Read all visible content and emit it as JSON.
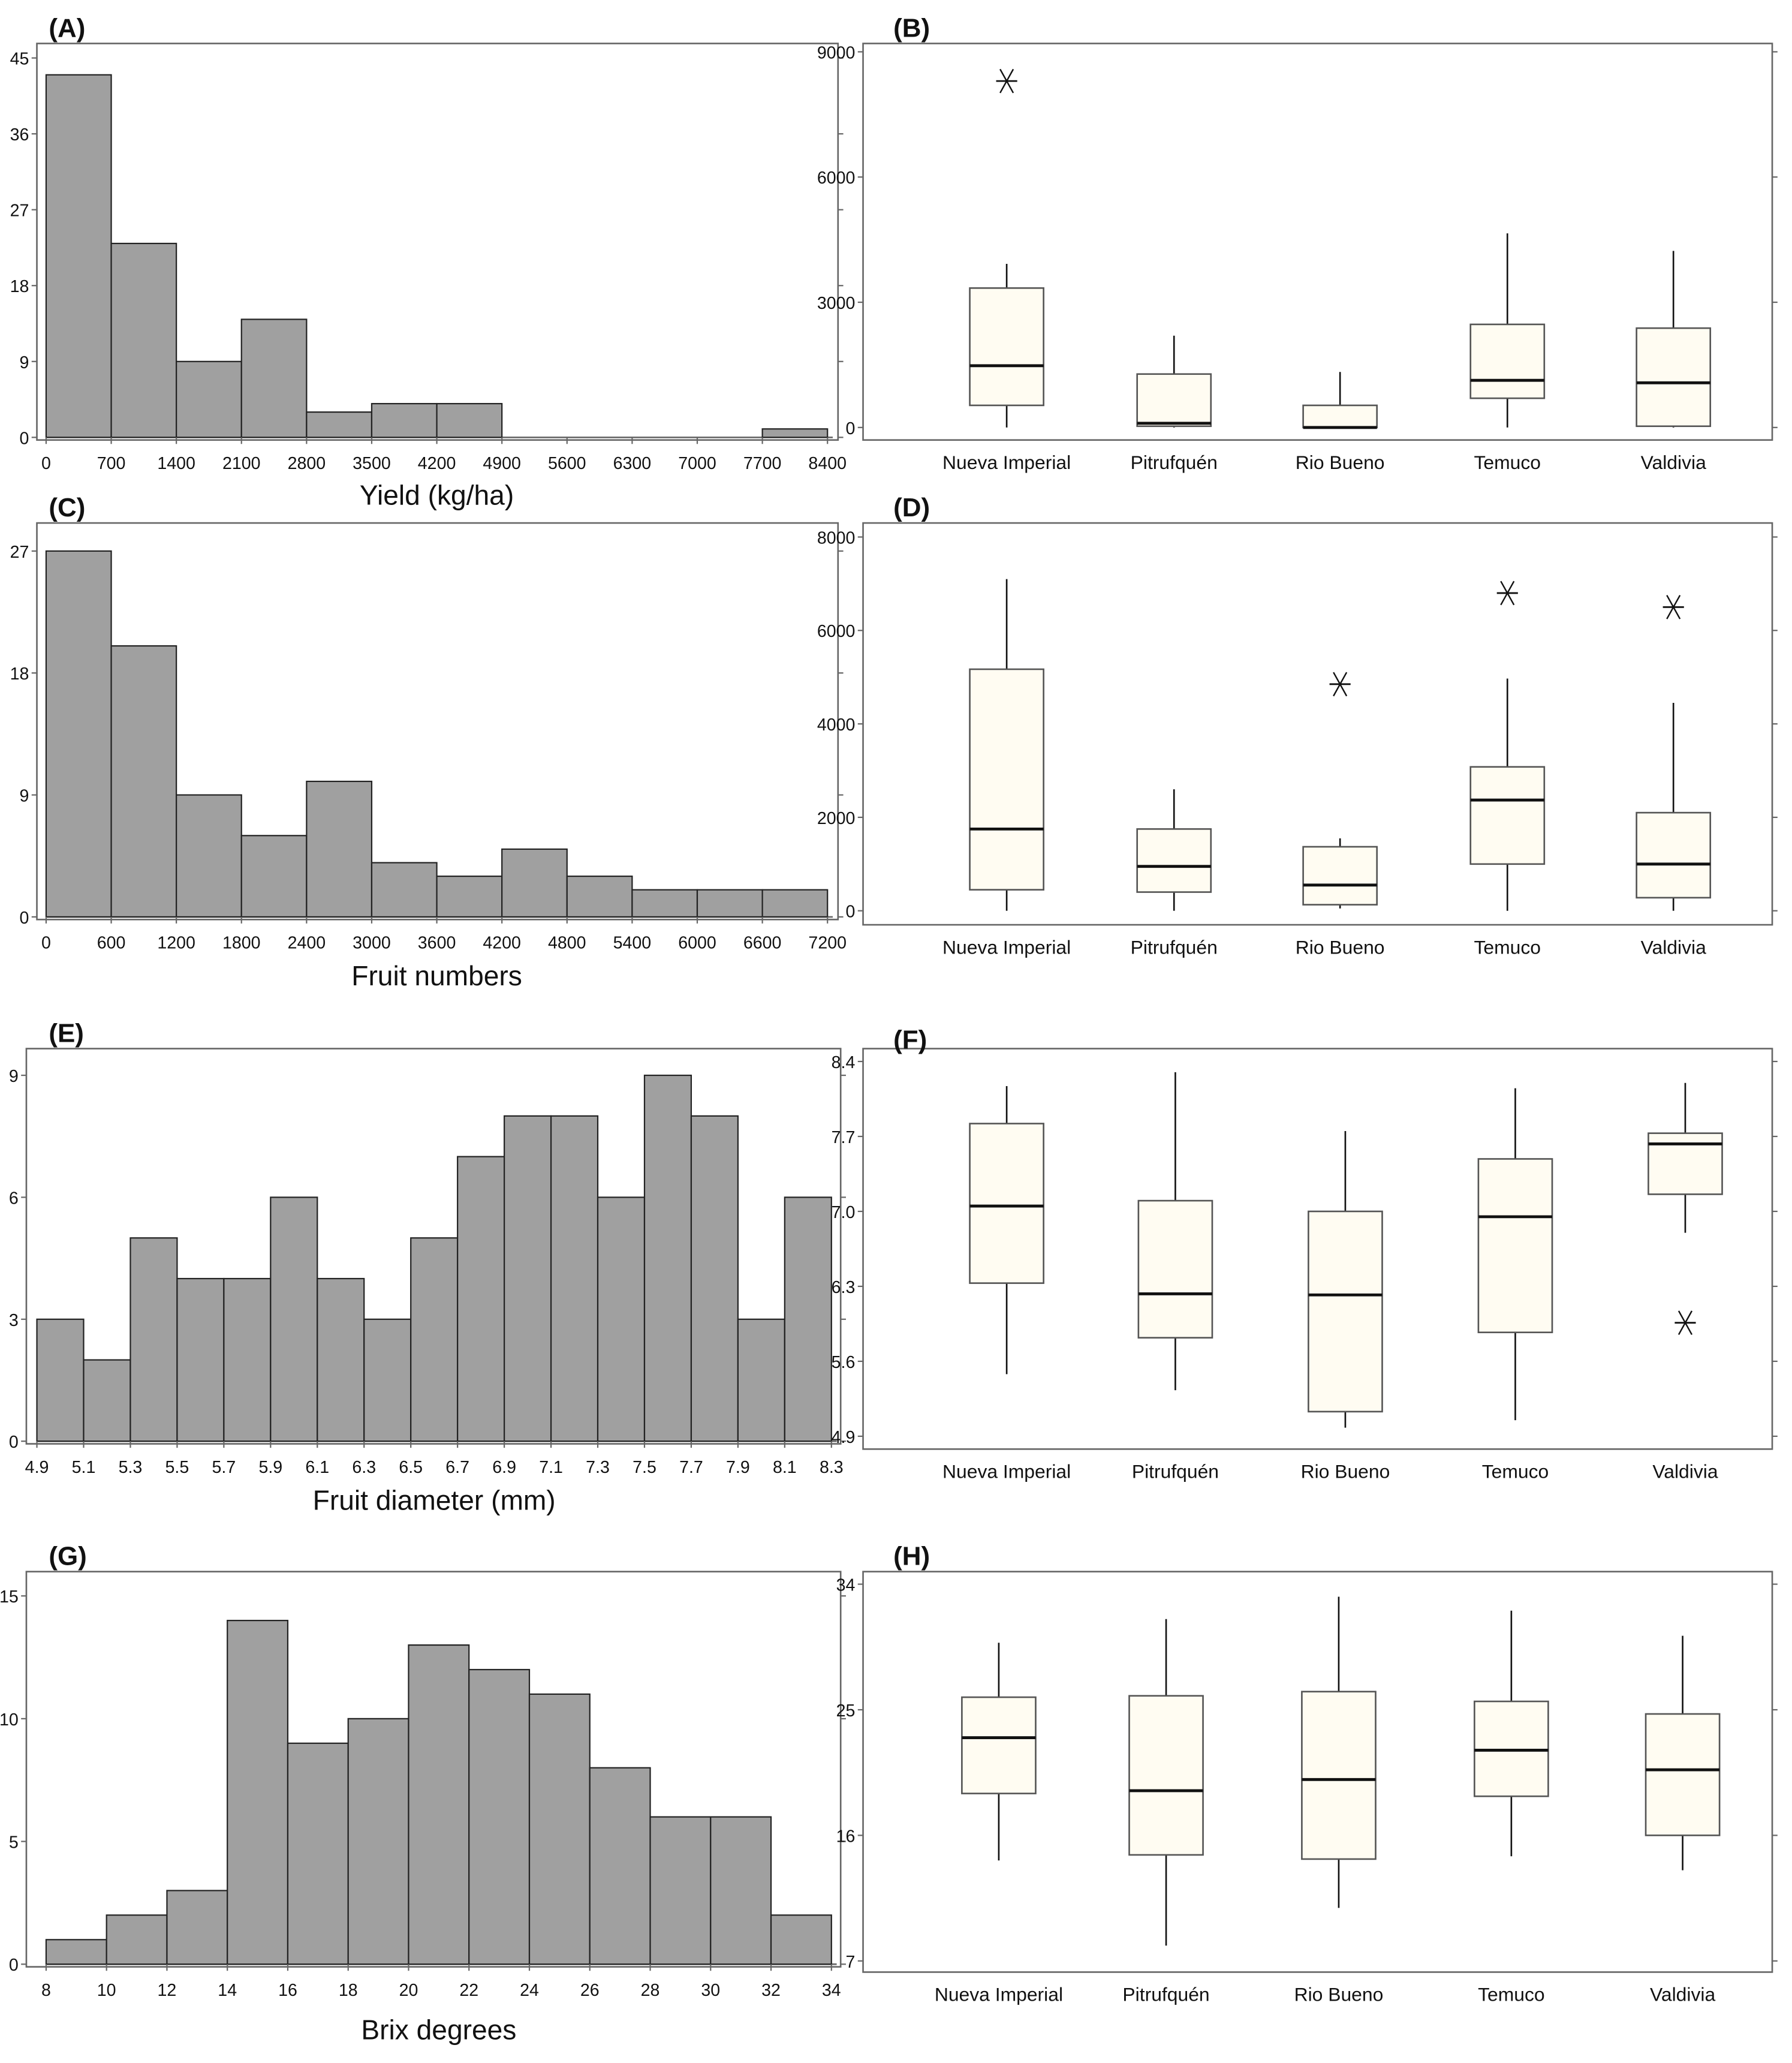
{
  "colors": {
    "bar": "#a0a0a0",
    "box": "#fffcf2",
    "frame": "#666666",
    "ink": "#111111"
  },
  "chart_data": [
    {
      "id": "A",
      "panel_label": "(A)",
      "type": "bar",
      "title": "",
      "xlabel": "Yield (kg/ha)",
      "ylabel": "",
      "bin_edges": [
        0,
        700,
        1400,
        2100,
        2800,
        3500,
        4200,
        4900,
        5600,
        6300,
        7000,
        7700,
        8400
      ],
      "x_ticks": [
        "0",
        "700",
        "1400",
        "2100",
        "2800",
        "3500",
        "4200",
        "4900",
        "5600",
        "6300",
        "7000",
        "7700",
        "8400"
      ],
      "values": [
        43,
        23,
        9,
        14,
        3,
        4,
        4,
        0,
        0,
        0,
        0,
        1
      ],
      "y_ticks": [
        "0",
        "9",
        "18",
        "27",
        "36",
        "45"
      ],
      "ylim": [
        0,
        45
      ],
      "xlim": [
        0,
        8400
      ]
    },
    {
      "id": "B",
      "panel_label": "(B)",
      "type": "box",
      "categories": [
        "Nueva Imperial",
        "Pitrufquén",
        "Rio Bueno",
        "Temuco",
        "Valdivia"
      ],
      "y_ticks": [
        "0",
        "3000",
        "6000",
        "9000"
      ],
      "ylim": [
        -300,
        9200
      ],
      "boxes": [
        {
          "low": 0,
          "q1": 530,
          "median": 1480,
          "q3": 3340,
          "high": 3920,
          "outliers": [
            8300
          ]
        },
        {
          "low": 0,
          "q1": 30,
          "median": 100,
          "q3": 1280,
          "high": 2200,
          "outliers": []
        },
        {
          "low": 0,
          "q1": 0,
          "median": 0,
          "q3": 530,
          "high": 1330,
          "outliers": []
        },
        {
          "low": 0,
          "q1": 700,
          "median": 1130,
          "q3": 2470,
          "high": 4650,
          "outliers": []
        },
        {
          "low": 0,
          "q1": 30,
          "median": 1070,
          "q3": 2380,
          "high": 4230,
          "outliers": []
        }
      ]
    },
    {
      "id": "C",
      "panel_label": "(C)",
      "type": "bar",
      "title": "",
      "xlabel": "Fruit numbers",
      "ylabel": "",
      "bin_edges": [
        0,
        600,
        1200,
        1800,
        2400,
        3000,
        3600,
        4200,
        4800,
        5400,
        6000,
        6600,
        7200
      ],
      "x_ticks": [
        "0",
        "600",
        "1200",
        "1800",
        "2400",
        "3000",
        "3600",
        "4200",
        "4800",
        "5400",
        "6000",
        "6600",
        "7200"
      ],
      "values": [
        27,
        20,
        9,
        6,
        10,
        4,
        3,
        5,
        3,
        2,
        2,
        2
      ],
      "y_ticks": [
        "0",
        "9",
        "18",
        "27"
      ],
      "ylim": [
        0,
        28
      ],
      "xlim": [
        0,
        7200
      ]
    },
    {
      "id": "D",
      "panel_label": "(D)",
      "type": "box",
      "categories": [
        "Nueva Imperial",
        "Pitrufquén",
        "Rio Bueno",
        "Temuco",
        "Valdivia"
      ],
      "y_ticks": [
        "0",
        "2000",
        "4000",
        "6000",
        "8000"
      ],
      "ylim": [
        -300,
        8300
      ],
      "boxes": [
        {
          "low": 0,
          "q1": 450,
          "median": 1750,
          "q3": 5170,
          "high": 7100,
          "outliers": []
        },
        {
          "low": 0,
          "q1": 400,
          "median": 950,
          "q3": 1750,
          "high": 2600,
          "outliers": []
        },
        {
          "low": 50,
          "q1": 130,
          "median": 550,
          "q3": 1370,
          "high": 1550,
          "outliers": [
            4850
          ]
        },
        {
          "low": 0,
          "q1": 1000,
          "median": 2370,
          "q3": 3080,
          "high": 4970,
          "outliers": [
            6800
          ]
        },
        {
          "low": 0,
          "q1": 280,
          "median": 1000,
          "q3": 2100,
          "high": 4450,
          "outliers": [
            6500
          ]
        }
      ]
    },
    {
      "id": "E",
      "panel_label": "(E)",
      "type": "bar",
      "title": "",
      "xlabel": "Fruit diameter (mm)",
      "ylabel": "",
      "bin_edges": [
        4.9,
        5.1,
        5.3,
        5.5,
        5.7,
        5.9,
        6.1,
        6.3,
        6.5,
        6.7,
        6.9,
        7.1,
        7.3,
        7.5,
        7.7,
        7.9,
        8.1,
        8.3
      ],
      "x_ticks": [
        "4.9",
        "5.1",
        "5.3",
        "5.5",
        "5.7",
        "5.9",
        "6.1",
        "6.3",
        "6.5",
        "6.7",
        "6.9",
        "7.1",
        "7.3",
        "7.5",
        "7.7",
        "7.9",
        "8.1",
        "8.3"
      ],
      "values": [
        3,
        2,
        5,
        4,
        4,
        6,
        4,
        3,
        5,
        7,
        8,
        8,
        6,
        9,
        8,
        3,
        6
      ],
      "y_ticks": [
        "0",
        "3",
        "6",
        "9"
      ],
      "ylim": [
        0,
        9.3
      ],
      "xlim": [
        4.9,
        8.3
      ]
    },
    {
      "id": "F",
      "panel_label": "(F)",
      "type": "box",
      "categories": [
        "Nueva Imperial",
        "Pitrufquén",
        "Rio Bueno",
        "Temuco",
        "Valdivia"
      ],
      "y_ticks": [
        "4.9",
        "5.6",
        "6.3",
        "7.0",
        "7.7",
        "8.4"
      ],
      "ylim": [
        4.78,
        8.52
      ],
      "boxes": [
        {
          "low": 5.48,
          "q1": 6.33,
          "median": 7.05,
          "q3": 7.82,
          "high": 8.17,
          "outliers": []
        },
        {
          "low": 5.33,
          "q1": 5.82,
          "median": 6.23,
          "q3": 7.1,
          "high": 8.3,
          "outliers": []
        },
        {
          "low": 4.98,
          "q1": 5.13,
          "median": 6.22,
          "q3": 7.0,
          "high": 7.75,
          "outliers": []
        },
        {
          "low": 5.05,
          "q1": 5.87,
          "median": 6.95,
          "q3": 7.49,
          "high": 8.15,
          "outliers": []
        },
        {
          "low": 6.8,
          "q1": 7.16,
          "median": 7.63,
          "q3": 7.73,
          "high": 8.2,
          "outliers": [
            5.96
          ]
        }
      ]
    },
    {
      "id": "G",
      "panel_label": "(G)",
      "type": "bar",
      "title": "",
      "xlabel": "Brix degrees",
      "ylabel": "",
      "bin_edges": [
        8,
        10,
        12,
        14,
        16,
        18,
        20,
        22,
        24,
        26,
        28,
        30,
        32,
        34
      ],
      "x_ticks": [
        "8",
        "10",
        "12",
        "14",
        "16",
        "18",
        "20",
        "22",
        "24",
        "26",
        "28",
        "30",
        "32",
        "34"
      ],
      "values": [
        1,
        2,
        3,
        14,
        9,
        10,
        13,
        12,
        11,
        8,
        6,
        6,
        2
      ],
      "y_ticks": [
        "0",
        "5",
        "10",
        "15"
      ],
      "ylim": [
        0,
        15.4
      ],
      "xlim": [
        8,
        34
      ]
    },
    {
      "id": "H",
      "panel_label": "(H)",
      "type": "box",
      "categories": [
        "Nueva Imperial",
        "Pitrufquén",
        "Rio Bueno",
        "Temuco",
        "Valdivia"
      ],
      "y_ticks": [
        "7",
        "16",
        "25",
        "34"
      ],
      "ylim": [
        6.2,
        34.9
      ],
      "boxes": [
        {
          "low": 14.2,
          "q1": 19,
          "median": 23,
          "q3": 25.9,
          "high": 29.8,
          "outliers": []
        },
        {
          "low": 8.1,
          "q1": 14.6,
          "median": 19.2,
          "q3": 26,
          "high": 31.5,
          "outliers": []
        },
        {
          "low": 10.8,
          "q1": 14.3,
          "median": 20,
          "q3": 26.3,
          "high": 33.1,
          "outliers": []
        },
        {
          "low": 14.5,
          "q1": 18.8,
          "median": 22.1,
          "q3": 25.6,
          "high": 32.1,
          "outliers": []
        },
        {
          "low": 13.5,
          "q1": 16,
          "median": 20.7,
          "q3": 24.7,
          "high": 30.3,
          "outliers": []
        }
      ]
    }
  ]
}
